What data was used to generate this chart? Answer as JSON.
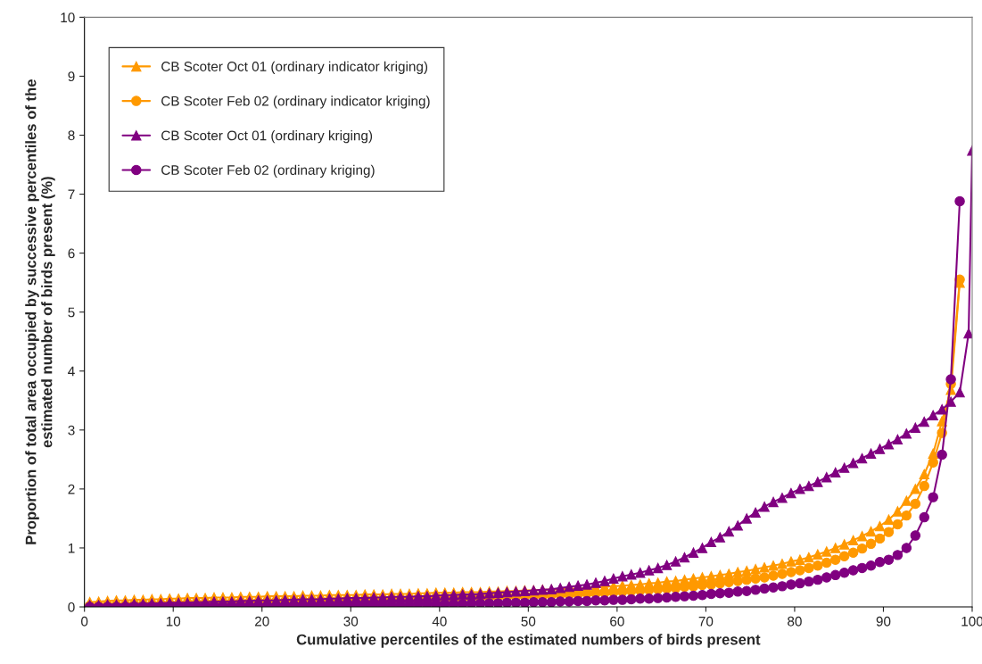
{
  "chart_data": {
    "type": "line",
    "xlabel": "Cumulative percentiles of the estimated numbers of birds present",
    "ylabel": "Proportion of total area occupied by successive percentiles of the\nestimated number of birds present (%)",
    "x": [
      0.6,
      1.6,
      2.6,
      3.6,
      4.6,
      5.6,
      6.6,
      7.6,
      8.6,
      9.6,
      10.6,
      11.6,
      12.6,
      13.6,
      14.6,
      15.6,
      16.6,
      17.6,
      18.6,
      19.6,
      20.6,
      21.6,
      22.6,
      23.6,
      24.6,
      25.6,
      26.6,
      27.6,
      28.6,
      29.6,
      30.6,
      31.6,
      32.6,
      33.6,
      34.6,
      35.6,
      36.6,
      37.6,
      38.6,
      39.6,
      40.6,
      41.6,
      42.6,
      43.6,
      44.6,
      45.6,
      46.6,
      47.6,
      48.6,
      49.6,
      50.6,
      51.6,
      52.6,
      53.6,
      54.6,
      55.6,
      56.6,
      57.6,
      58.6,
      59.6,
      60.6,
      61.6,
      62.6,
      63.6,
      64.6,
      65.6,
      66.6,
      67.6,
      68.6,
      69.6,
      70.6,
      71.6,
      72.6,
      73.6,
      74.6,
      75.6,
      76.6,
      77.6,
      78.6,
      79.6,
      80.6,
      81.6,
      82.6,
      83.6,
      84.6,
      85.6,
      86.6,
      87.6,
      88.6,
      89.6,
      90.6,
      91.6,
      92.6,
      93.6,
      94.6,
      95.6,
      96.6,
      97.6,
      98.6,
      99.6,
      100
    ],
    "series": [
      {
        "name": "CB Scoter Oct 01 (ordinary indicator kriging)",
        "color": "#ff9900",
        "marker": "triangle",
        "values": [
          0.08,
          0.09,
          0.1,
          0.11,
          0.11,
          0.12,
          0.12,
          0.13,
          0.13,
          0.14,
          0.14,
          0.15,
          0.15,
          0.15,
          0.16,
          0.16,
          0.16,
          0.17,
          0.17,
          0.17,
          0.18,
          0.18,
          0.18,
          0.18,
          0.19,
          0.19,
          0.19,
          0.2,
          0.2,
          0.2,
          0.2,
          0.21,
          0.21,
          0.21,
          0.22,
          0.22,
          0.22,
          0.23,
          0.23,
          0.24,
          0.24,
          0.24,
          0.25,
          0.25,
          0.25,
          0.26,
          0.26,
          0.27,
          0.27,
          0.28,
          0.28,
          0.29,
          0.29,
          0.3,
          0.31,
          0.31,
          0.32,
          0.33,
          0.34,
          0.35,
          0.36,
          0.37,
          0.38,
          0.4,
          0.41,
          0.43,
          0.44,
          0.46,
          0.48,
          0.5,
          0.52,
          0.54,
          0.56,
          0.59,
          0.61,
          0.64,
          0.67,
          0.7,
          0.73,
          0.77,
          0.8,
          0.84,
          0.89,
          0.94,
          1.0,
          1.06,
          1.13,
          1.2,
          1.28,
          1.37,
          1.48,
          1.62,
          1.8,
          2.0,
          2.25,
          2.6,
          3.15,
          3.68,
          5.5,
          null,
          null
        ]
      },
      {
        "name": "CB Scoter Feb 02 (ordinary indicator kriging)",
        "color": "#ff9900",
        "marker": "circle",
        "values": [
          0.02,
          0.02,
          0.03,
          0.03,
          0.03,
          0.04,
          0.04,
          0.04,
          0.05,
          0.05,
          0.05,
          0.06,
          0.06,
          0.06,
          0.07,
          0.07,
          0.07,
          0.08,
          0.08,
          0.08,
          0.09,
          0.09,
          0.09,
          0.1,
          0.1,
          0.1,
          0.1,
          0.11,
          0.11,
          0.11,
          0.11,
          0.12,
          0.12,
          0.12,
          0.12,
          0.13,
          0.13,
          0.13,
          0.13,
          0.14,
          0.14,
          0.14,
          0.15,
          0.15,
          0.16,
          0.16,
          0.17,
          0.17,
          0.18,
          0.18,
          0.19,
          0.19,
          0.2,
          0.21,
          0.21,
          0.22,
          0.23,
          0.23,
          0.24,
          0.25,
          0.26,
          0.27,
          0.28,
          0.29,
          0.3,
          0.31,
          0.32,
          0.34,
          0.35,
          0.37,
          0.38,
          0.4,
          0.42,
          0.44,
          0.46,
          0.48,
          0.5,
          0.53,
          0.56,
          0.59,
          0.62,
          0.66,
          0.7,
          0.75,
          0.8,
          0.86,
          0.92,
          0.99,
          1.07,
          1.16,
          1.27,
          1.4,
          1.55,
          1.75,
          2.05,
          2.45,
          2.95,
          3.78,
          5.55,
          null,
          null
        ]
      },
      {
        "name": "CB Scoter Oct 01 (ordinary kriging)",
        "color": "#800080",
        "marker": "triangle",
        "values": [
          0.03,
          0.03,
          0.04,
          0.04,
          0.05,
          0.05,
          0.05,
          0.06,
          0.06,
          0.07,
          0.07,
          0.07,
          0.08,
          0.08,
          0.09,
          0.09,
          0.09,
          0.1,
          0.1,
          0.11,
          0.11,
          0.11,
          0.12,
          0.12,
          0.13,
          0.13,
          0.13,
          0.14,
          0.14,
          0.15,
          0.15,
          0.15,
          0.16,
          0.16,
          0.17,
          0.17,
          0.17,
          0.18,
          0.18,
          0.19,
          0.2,
          0.2,
          0.21,
          0.21,
          0.22,
          0.23,
          0.24,
          0.25,
          0.26,
          0.27,
          0.28,
          0.29,
          0.3,
          0.32,
          0.34,
          0.36,
          0.38,
          0.41,
          0.44,
          0.48,
          0.52,
          0.55,
          0.58,
          0.62,
          0.66,
          0.71,
          0.77,
          0.84,
          0.92,
          1.0,
          1.1,
          1.18,
          1.28,
          1.38,
          1.5,
          1.6,
          1.7,
          1.78,
          1.85,
          1.93,
          2.0,
          2.05,
          2.12,
          2.2,
          2.28,
          2.36,
          2.44,
          2.52,
          2.6,
          2.68,
          2.76,
          2.84,
          2.94,
          3.04,
          3.14,
          3.25,
          3.35,
          3.48,
          3.64,
          4.64,
          7.74
        ]
      },
      {
        "name": "CB Scoter Feb 02 (ordinary kriging)",
        "color": "#800080",
        "marker": "circle",
        "values": [
          0,
          0,
          0,
          0,
          0,
          0.01,
          0.01,
          0.01,
          0.01,
          0.01,
          0.01,
          0.01,
          0.01,
          0.02,
          0.02,
          0.02,
          0.02,
          0.02,
          0.02,
          0.02,
          0.02,
          0.02,
          0.03,
          0.03,
          0.03,
          0.03,
          0.03,
          0.03,
          0.03,
          0.03,
          0.04,
          0.04,
          0.04,
          0.04,
          0.04,
          0.04,
          0.04,
          0.05,
          0.05,
          0.05,
          0.05,
          0.05,
          0.05,
          0.06,
          0.06,
          0.06,
          0.06,
          0.07,
          0.07,
          0.07,
          0.08,
          0.08,
          0.08,
          0.09,
          0.09,
          0.1,
          0.1,
          0.11,
          0.11,
          0.12,
          0.12,
          0.13,
          0.14,
          0.14,
          0.15,
          0.16,
          0.17,
          0.18,
          0.19,
          0.2,
          0.22,
          0.23,
          0.24,
          0.26,
          0.27,
          0.29,
          0.31,
          0.33,
          0.35,
          0.38,
          0.4,
          0.43,
          0.46,
          0.5,
          0.54,
          0.58,
          0.62,
          0.66,
          0.7,
          0.76,
          0.8,
          0.88,
          1.0,
          1.21,
          1.52,
          1.86,
          2.58,
          3.86,
          6.88,
          null,
          null
        ]
      }
    ],
    "xlim": [
      0,
      100
    ],
    "xticks": [
      0,
      10,
      20,
      30,
      40,
      50,
      60,
      70,
      80,
      90,
      100
    ],
    "ylim": [
      0,
      10
    ],
    "yticks": [
      0,
      1,
      2,
      3,
      4,
      5,
      6,
      7,
      8,
      9,
      10
    ],
    "grid": false,
    "legend": "top left"
  }
}
